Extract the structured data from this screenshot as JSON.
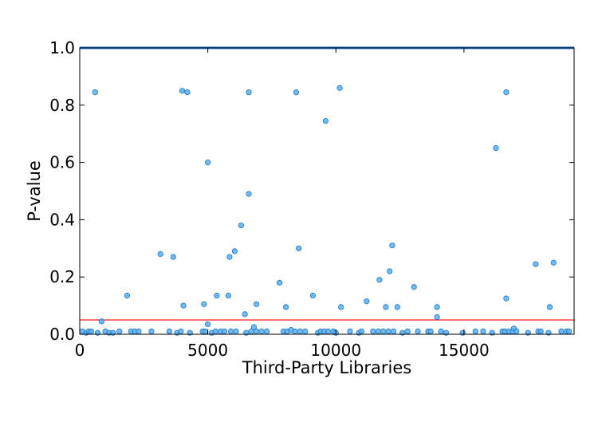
{
  "chart_data": {
    "type": "scatter",
    "xlabel": "Third-Party Libraries",
    "ylabel": "P-value",
    "xlim": [
      0,
      19300
    ],
    "ylim": [
      0,
      1.0
    ],
    "xticks": [
      0,
      5000,
      10000,
      15000
    ],
    "xtick_labels": [
      "0",
      "5000",
      "10000",
      "15000"
    ],
    "yticks": [
      0,
      0.2,
      0.4,
      0.6,
      0.8,
      1.0
    ],
    "ytick_labels": [
      "0.0",
      "0.2",
      "0.4",
      "0.6",
      "0.8",
      "1.0"
    ],
    "grid": false,
    "threshold_line": {
      "y": 0.05,
      "color": "#ff0000"
    },
    "marker_color": "#5aaef0",
    "marker_edge_color": "#1e78c8",
    "saturated_line_color": "#1f77d4",
    "points": [
      [
        100,
        0.01
      ],
      [
        250,
        0.005
      ],
      [
        350,
        0.01
      ],
      [
        450,
        0.01
      ],
      [
        600,
        0.845
      ],
      [
        700,
        0.005
      ],
      [
        850,
        0.045
      ],
      [
        1000,
        0.01
      ],
      [
        1150,
        0.005
      ],
      [
        1300,
        0.005
      ],
      [
        1550,
        0.01
      ],
      [
        1850,
        0.135
      ],
      [
        2000,
        0.01
      ],
      [
        2150,
        0.01
      ],
      [
        2300,
        0.01
      ],
      [
        2800,
        0.01
      ],
      [
        3150,
        0.28
      ],
      [
        3500,
        0.01
      ],
      [
        3650,
        0.27
      ],
      [
        3800,
        0.005
      ],
      [
        3950,
        0.01
      ],
      [
        4000,
        0.85
      ],
      [
        4050,
        0.1
      ],
      [
        4200,
        0.845
      ],
      [
        4300,
        0.005
      ],
      [
        4800,
        0.01
      ],
      [
        4850,
        0.105
      ],
      [
        4900,
        0.01
      ],
      [
        5000,
        0.035
      ],
      [
        5000,
        0.6
      ],
      [
        5150,
        0.005
      ],
      [
        5300,
        0.01
      ],
      [
        5350,
        0.135
      ],
      [
        5500,
        0.01
      ],
      [
        5650,
        0.01
      ],
      [
        5800,
        0.135
      ],
      [
        5850,
        0.27
      ],
      [
        5900,
        0.01
      ],
      [
        6050,
        0.29
      ],
      [
        6100,
        0.01
      ],
      [
        6300,
        0.38
      ],
      [
        6450,
        0.07
      ],
      [
        6500,
        0.005
      ],
      [
        6600,
        0.845
      ],
      [
        6600,
        0.49
      ],
      [
        6700,
        0.01
      ],
      [
        6800,
        0.025
      ],
      [
        6900,
        0.105
      ],
      [
        6900,
        0.01
      ],
      [
        7100,
        0.01
      ],
      [
        7300,
        0.01
      ],
      [
        7800,
        0.18
      ],
      [
        7950,
        0.01
      ],
      [
        8050,
        0.095
      ],
      [
        8100,
        0.01
      ],
      [
        8250,
        0.015
      ],
      [
        8400,
        0.01
      ],
      [
        8450,
        0.845
      ],
      [
        8550,
        0.3
      ],
      [
        8600,
        0.01
      ],
      [
        8800,
        0.01
      ],
      [
        9100,
        0.135
      ],
      [
        9300,
        0.005
      ],
      [
        9400,
        0.01
      ],
      [
        9550,
        0.01
      ],
      [
        9600,
        0.745
      ],
      [
        9700,
        0.01
      ],
      [
        9900,
        0.01
      ],
      [
        10000,
        0.005
      ],
      [
        10150,
        0.86
      ],
      [
        10200,
        0.095
      ],
      [
        10550,
        0.01
      ],
      [
        10900,
        0.005
      ],
      [
        11000,
        0.01
      ],
      [
        11200,
        0.115
      ],
      [
        11450,
        0.01
      ],
      [
        11650,
        0.01
      ],
      [
        11700,
        0.19
      ],
      [
        11850,
        0.01
      ],
      [
        11950,
        0.095
      ],
      [
        12050,
        0.01
      ],
      [
        12100,
        0.22
      ],
      [
        12200,
        0.31
      ],
      [
        12250,
        0.01
      ],
      [
        12400,
        0.095
      ],
      [
        12600,
        0.005
      ],
      [
        12800,
        0.01
      ],
      [
        13050,
        0.165
      ],
      [
        13200,
        0.01
      ],
      [
        13600,
        0.01
      ],
      [
        13700,
        0.01
      ],
      [
        13950,
        0.095
      ],
      [
        13950,
        0.06
      ],
      [
        14100,
        0.01
      ],
      [
        14300,
        0.005
      ],
      [
        14950,
        0.005
      ],
      [
        15450,
        0.01
      ],
      [
        15750,
        0.01
      ],
      [
        16100,
        0.005
      ],
      [
        16250,
        0.65
      ],
      [
        16500,
        0.01
      ],
      [
        16600,
        0.01
      ],
      [
        16650,
        0.125
      ],
      [
        16650,
        0.845
      ],
      [
        16750,
        0.01
      ],
      [
        16900,
        0.01
      ],
      [
        16950,
        0.02
      ],
      [
        17050,
        0.01
      ],
      [
        17500,
        0.005
      ],
      [
        17800,
        0.245
      ],
      [
        17900,
        0.01
      ],
      [
        18000,
        0.01
      ],
      [
        18300,
        0.005
      ],
      [
        18350,
        0.095
      ],
      [
        18500,
        0.25
      ],
      [
        18800,
        0.01
      ],
      [
        19000,
        0.01
      ],
      [
        19100,
        0.01
      ]
    ]
  }
}
